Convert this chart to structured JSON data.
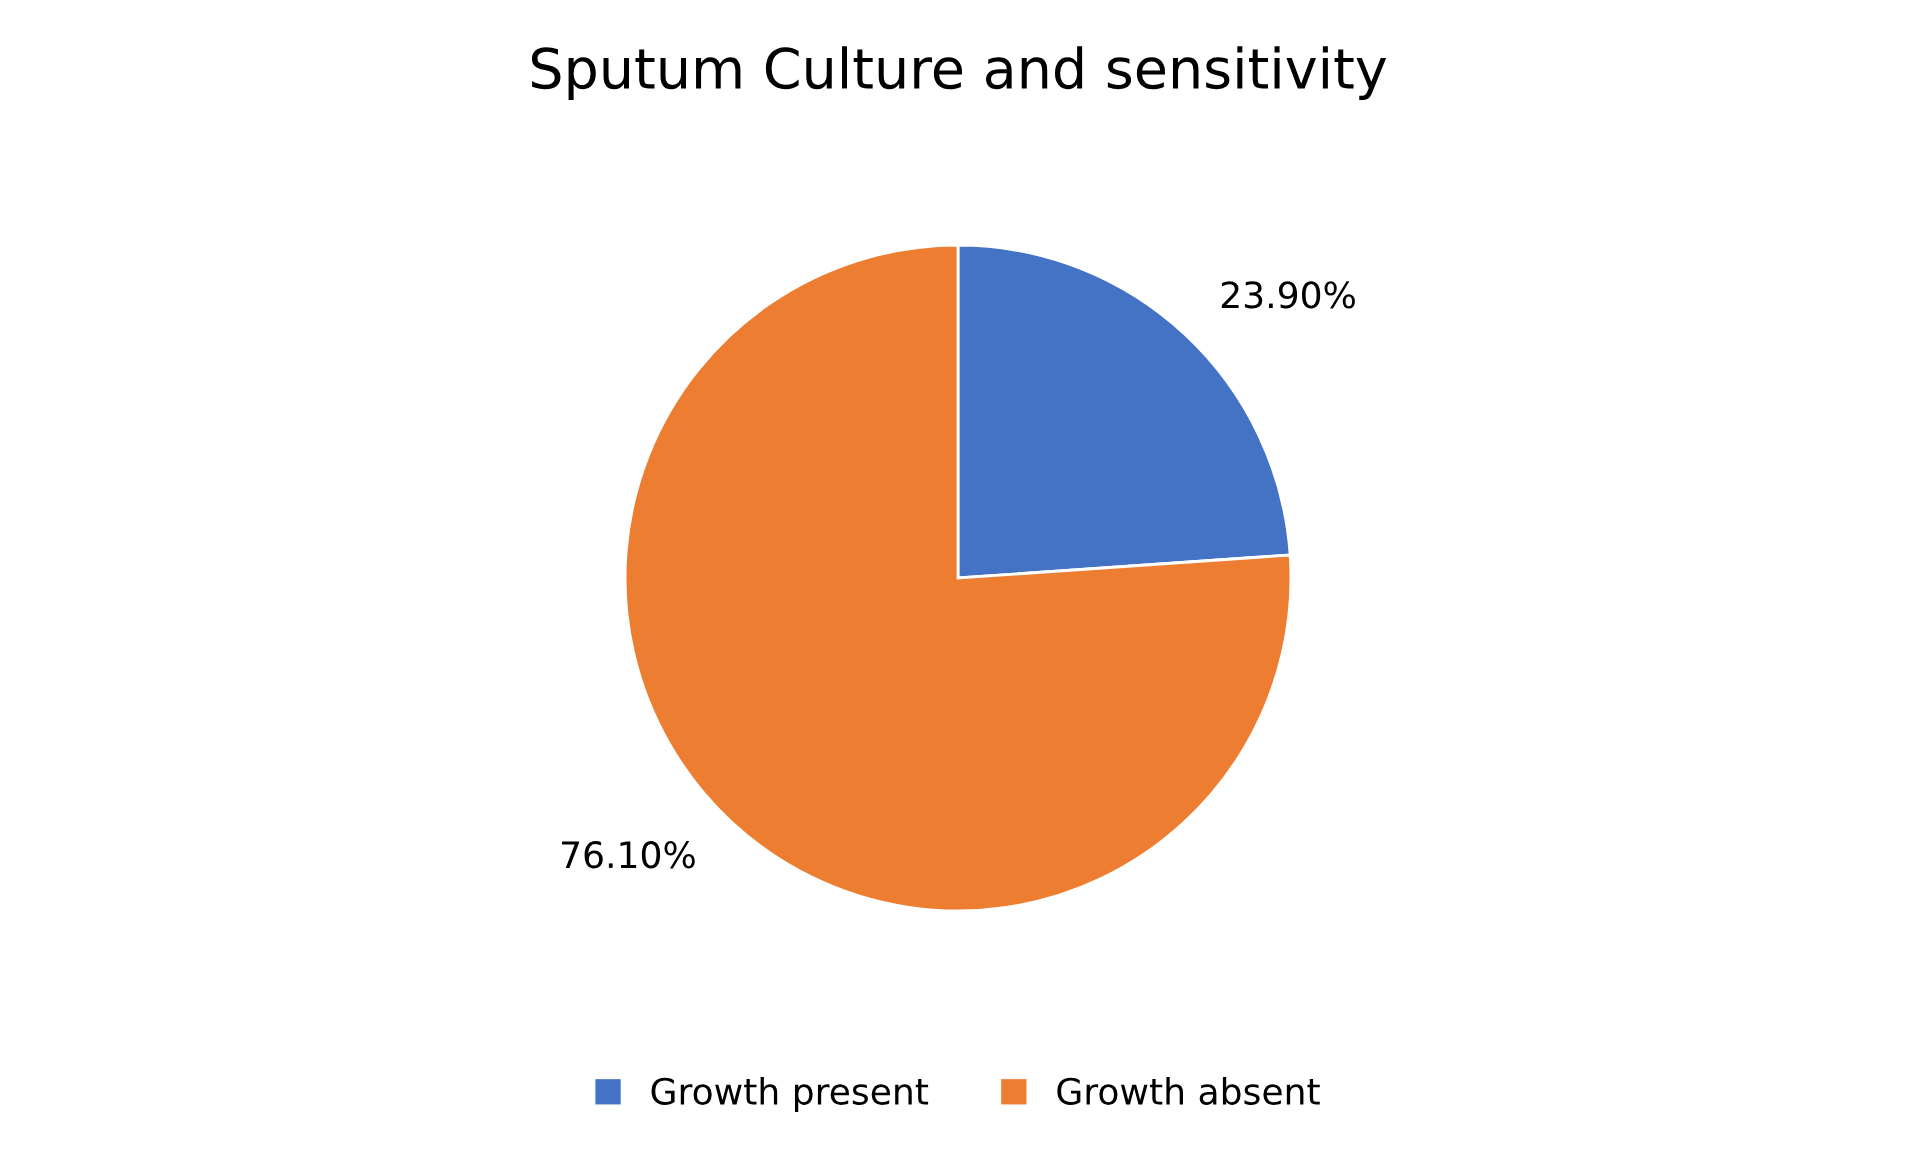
{
  "chart_data": {
    "type": "pie",
    "title": "Sputum Culture and sensitivity",
    "categories": [
      "Growth present",
      "Growth absent"
    ],
    "values": [
      23.9,
      76.1
    ],
    "colors": [
      "#4472c4",
      "#ed7d31"
    ],
    "value_labels": [
      "23.90%",
      "76.10%"
    ],
    "legend": "bottom"
  }
}
